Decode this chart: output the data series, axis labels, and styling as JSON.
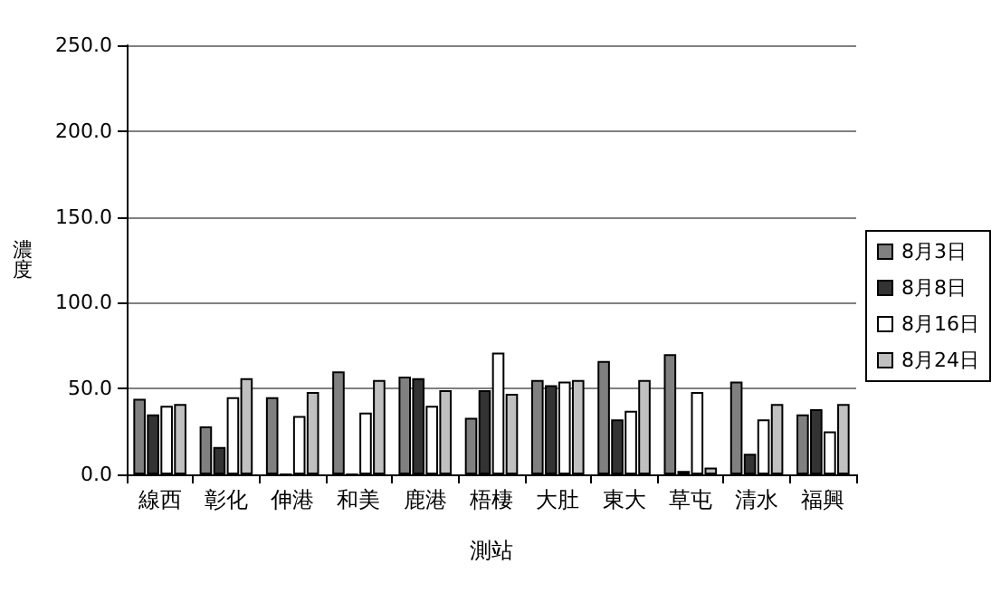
{
  "chart_data": {
    "type": "bar",
    "xlabel": "測站",
    "ylabel": "濃度",
    "categories": [
      "線西",
      "彰化",
      "伸港",
      "和美",
      "鹿港",
      "梧棲",
      "大肚",
      "東大",
      "草屯",
      "清水",
      "福興"
    ],
    "series": [
      {
        "name": "8月3日",
        "color": "#808080",
        "values": [
          44,
          28,
          45,
          60,
          57,
          33,
          55,
          66,
          70,
          54,
          35
        ]
      },
      {
        "name": "8月8日",
        "color": "#333333",
        "values": [
          35,
          16,
          0,
          0,
          56,
          49,
          52,
          32,
          2,
          12,
          38
        ]
      },
      {
        "name": "8月16日",
        "color": "#ffffff",
        "values": [
          40,
          45,
          34,
          36,
          40,
          71,
          54,
          37,
          48,
          32,
          25
        ]
      },
      {
        "name": "8月24日",
        "color": "#c0c0c0",
        "values": [
          41,
          56,
          48,
          55,
          49,
          47,
          55,
          55,
          4,
          41,
          41
        ]
      }
    ],
    "ylim": [
      0,
      250
    ],
    "yticks": [
      {
        "value": 0,
        "label": "0.0"
      },
      {
        "value": 50,
        "label": "50.0"
      },
      {
        "value": 100,
        "label": "100.0"
      },
      {
        "value": 150,
        "label": "150.0"
      },
      {
        "value": 200,
        "label": "200.0"
      },
      {
        "value": 250,
        "label": "250.0"
      }
    ],
    "grid": "y",
    "legend": "right"
  }
}
